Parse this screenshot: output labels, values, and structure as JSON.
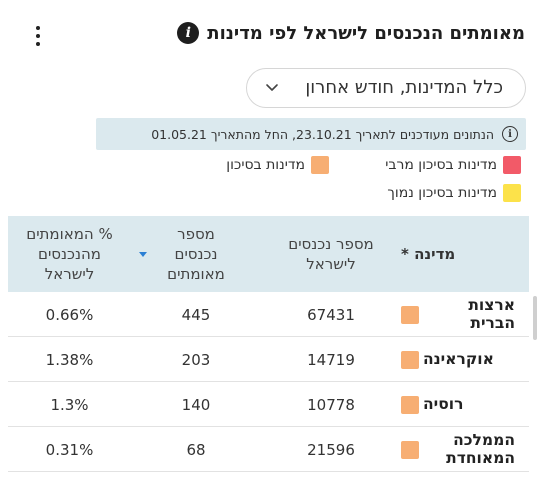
{
  "header": {
    "title": "מאומתים הנכנסים לישראל לפי מדינות",
    "info_icon": "info-icon",
    "menu_icon": "kebab-menu-icon"
  },
  "filter": {
    "selected": "כלל המדינות, חודש אחרון"
  },
  "notice": {
    "text": "הנתונים מעודכנים לתאריך 23.10.21, החל מהתאריך 01.05.21"
  },
  "legend": [
    {
      "label": "מדינות בסיכון מרבי",
      "color": "#f25a68"
    },
    {
      "label": "מדינות בסיכון",
      "color": "#f7ae73"
    },
    {
      "label": "מדינות בסיכון נמוך",
      "color": "#fce24a"
    }
  ],
  "table": {
    "headers": {
      "country": "מדינה *",
      "entries": "מספר נכנסים לישראל",
      "confirmed": "מספר נכנסים מאומתים",
      "pct": "% המאומתים מהנכנסים לישראל"
    },
    "rows": [
      {
        "country": "ארצות הברית",
        "entries": "67431",
        "confirmed": "445",
        "pct": "0.66%",
        "color": "#f7ae73"
      },
      {
        "country": "אוקראינה",
        "entries": "14719",
        "confirmed": "203",
        "pct": "1.38%",
        "color": "#f7ae73"
      },
      {
        "country": "רוסיה",
        "entries": "10778",
        "confirmed": "140",
        "pct": "1.3%",
        "color": "#f7ae73"
      },
      {
        "country": "הממלכה המאוחדת",
        "entries": "21596",
        "confirmed": "68",
        "pct": "0.31%",
        "color": "#f7ae73"
      }
    ]
  }
}
